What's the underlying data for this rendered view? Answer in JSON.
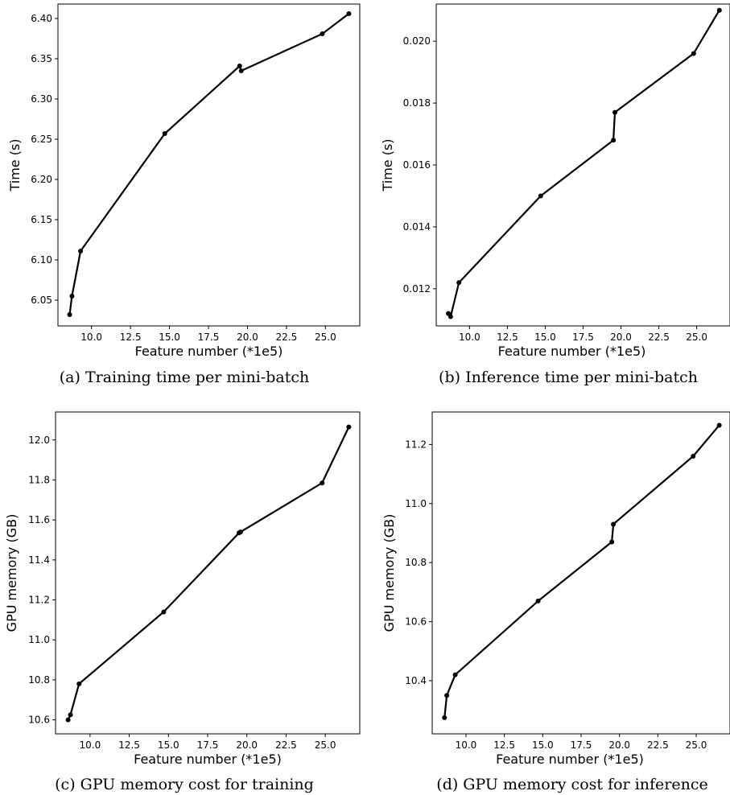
{
  "chart_data": [
    {
      "type": "line",
      "caption": "(a)  Training time per mini-batch",
      "xlabel": "Feature number (*1e5)",
      "ylabel": "Time (s)",
      "xlim": [
        7.85,
        27.2
      ],
      "ylim": [
        6.018,
        6.418
      ],
      "xticks": [
        "10.0",
        "12.5",
        "15.0",
        "17.5",
        "20.0",
        "22.5",
        "25.0"
      ],
      "xtick_values": [
        10.0,
        12.5,
        15.0,
        17.5,
        20.0,
        22.5,
        25.0
      ],
      "yticks": [
        "6.05",
        "6.10",
        "6.15",
        "6.20",
        "6.25",
        "6.30",
        "6.35",
        "6.40"
      ],
      "ytick_values": [
        6.05,
        6.1,
        6.15,
        6.2,
        6.25,
        6.3,
        6.35,
        6.4
      ],
      "grid": false,
      "series": [
        {
          "x": [
            8.6,
            8.75,
            9.3,
            14.7,
            19.5,
            19.6,
            24.8,
            26.5
          ],
          "y": [
            6.032,
            6.055,
            6.111,
            6.257,
            6.341,
            6.335,
            6.381,
            6.406
          ]
        }
      ]
    },
    {
      "type": "line",
      "caption": "(b)  Inference time per mini-batch",
      "xlabel": "Feature number (*1e5)",
      "ylabel": "Time (s)",
      "xlim": [
        7.8,
        27.2
      ],
      "ylim": [
        0.0108,
        0.0212
      ],
      "xticks": [
        "10.0",
        "12.5",
        "15.0",
        "17.5",
        "20.0",
        "22.5",
        "25.0"
      ],
      "xtick_values": [
        10.0,
        12.5,
        15.0,
        17.5,
        20.0,
        22.5,
        25.0
      ],
      "yticks": [
        "0.012",
        "0.014",
        "0.016",
        "0.018",
        "0.020"
      ],
      "ytick_values": [
        0.012,
        0.014,
        0.016,
        0.018,
        0.02
      ],
      "grid": false,
      "series": [
        {
          "x": [
            8.6,
            8.75,
            9.3,
            14.7,
            19.5,
            19.6,
            24.8,
            26.5
          ],
          "y": [
            0.0112,
            0.0111,
            0.0122,
            0.015,
            0.0168,
            0.0177,
            0.0196,
            0.021
          ]
        }
      ]
    },
    {
      "type": "line",
      "caption": "(c)  GPU memory cost for training",
      "xlabel": "Feature number (*1e5)",
      "ylabel": "GPU memory (GB)",
      "xlim": [
        7.8,
        27.2
      ],
      "ylim": [
        10.53,
        12.14
      ],
      "xticks": [
        "10.0",
        "12.5",
        "15.0",
        "17.5",
        "20.0",
        "22.5",
        "25.0"
      ],
      "xtick_values": [
        10.0,
        12.5,
        15.0,
        17.5,
        20.0,
        22.5,
        25.0
      ],
      "yticks": [
        "10.6",
        "10.8",
        "11.0",
        "11.2",
        "11.4",
        "11.6",
        "11.8",
        "12.0"
      ],
      "ytick_values": [
        10.6,
        10.8,
        11.0,
        11.2,
        11.4,
        11.6,
        11.8,
        12.0
      ],
      "grid": false,
      "series": [
        {
          "x": [
            8.6,
            8.75,
            9.3,
            14.7,
            19.5,
            19.6,
            24.8,
            26.5
          ],
          "y": [
            10.6,
            10.625,
            10.78,
            11.14,
            11.535,
            11.54,
            11.785,
            12.065
          ]
        }
      ]
    },
    {
      "type": "line",
      "caption": "(d)  GPU memory cost for inference",
      "xlabel": "Feature number (*1e5)",
      "ylabel": "GPU memory (GB)",
      "xlim": [
        7.8,
        27.2
      ],
      "ylim": [
        10.22,
        11.31
      ],
      "xticks": [
        "10.0",
        "12.5",
        "15.0",
        "17.5",
        "20.0",
        "22.5",
        "25.0"
      ],
      "xtick_values": [
        10.0,
        12.5,
        15.0,
        17.5,
        20.0,
        22.5,
        25.0
      ],
      "yticks": [
        "10.4",
        "10.6",
        "10.8",
        "11.0",
        "11.2"
      ],
      "ytick_values": [
        10.4,
        10.6,
        10.8,
        11.0,
        11.2
      ],
      "grid": false,
      "series": [
        {
          "x": [
            8.6,
            8.75,
            9.3,
            14.7,
            19.5,
            19.6,
            24.8,
            26.5
          ],
          "y": [
            10.275,
            10.35,
            10.42,
            10.67,
            10.87,
            10.93,
            11.16,
            11.265
          ]
        }
      ]
    }
  ]
}
